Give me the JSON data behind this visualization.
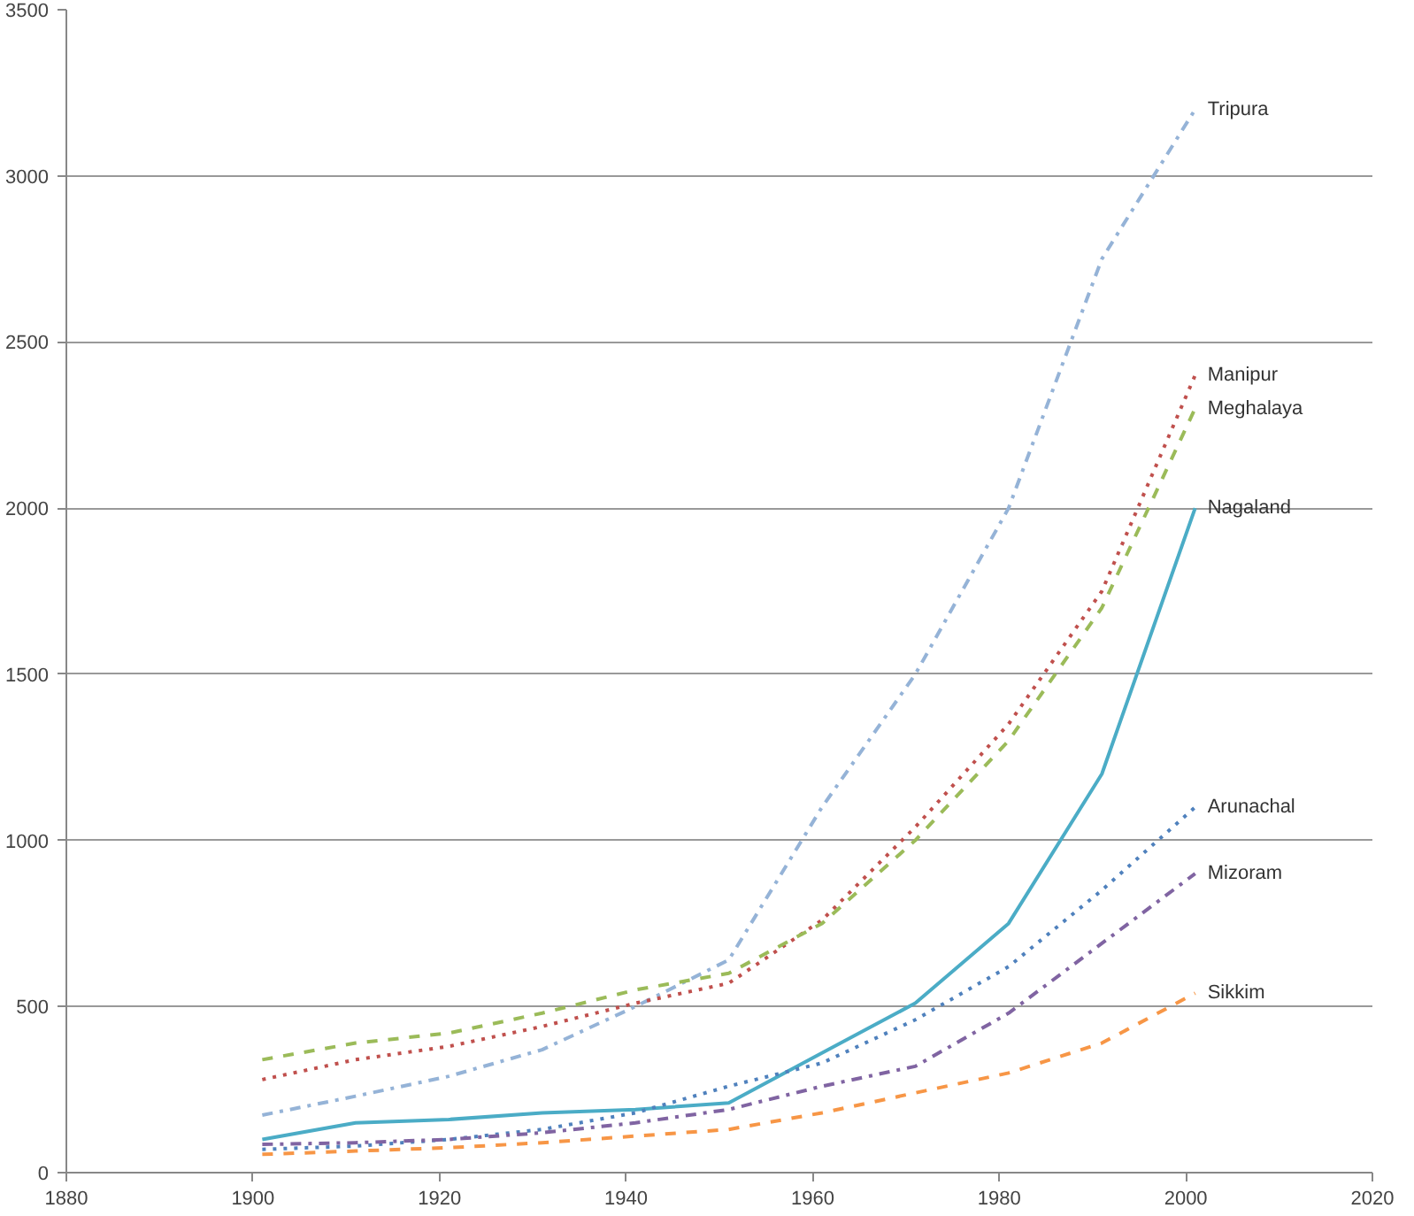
{
  "chart_data": {
    "type": "line",
    "x": [
      1901,
      1911,
      1921,
      1931,
      1941,
      1951,
      1961,
      1971,
      1981,
      1991,
      2001
    ],
    "xlim": [
      1880,
      2020
    ],
    "xticks": [
      1880,
      1900,
      1920,
      1940,
      1960,
      1980,
      2000,
      2020
    ],
    "ylim": [
      0,
      3500
    ],
    "yticks": [
      0,
      500,
      1000,
      1500,
      2000,
      2500,
      3000,
      3500
    ],
    "grid": "y",
    "legend": false,
    "marker": "none",
    "series": [
      {
        "name": "Tripura",
        "color": "#95b3d7",
        "line_style": "dashdot",
        "values": [
          173,
          230,
          290,
          370,
          500,
          640,
          1100,
          1500,
          2000,
          2750,
          3200
        ]
      },
      {
        "name": "Manipur",
        "color": "#c0504d",
        "line_style": "dotted",
        "values": [
          280,
          340,
          380,
          440,
          510,
          570,
          760,
          1040,
          1350,
          1750,
          2400
        ]
      },
      {
        "name": "Meghalaya",
        "color": "#9bbb59",
        "line_style": "dashed",
        "values": [
          340,
          390,
          420,
          480,
          550,
          600,
          750,
          1000,
          1300,
          1700,
          2300
        ]
      },
      {
        "name": "Nagaland",
        "color": "#4bacc6",
        "line_style": "solid",
        "values": [
          100,
          150,
          160,
          180,
          190,
          210,
          360,
          510,
          750,
          1200,
          2000
        ]
      },
      {
        "name": "Arunachal",
        "color": "#4f81bd",
        "line_style": "dotted",
        "values": [
          70,
          80,
          100,
          130,
          180,
          260,
          330,
          460,
          620,
          850,
          1100
        ]
      },
      {
        "name": "Mizoram",
        "color": "#8064a2",
        "line_style": "dashdot",
        "values": [
          85,
          90,
          100,
          120,
          150,
          190,
          260,
          320,
          480,
          690,
          900
        ]
      },
      {
        "name": "Sikkim",
        "color": "#f79646",
        "line_style": "dashed",
        "values": [
          55,
          65,
          75,
          90,
          110,
          130,
          180,
          240,
          300,
          390,
          540
        ]
      }
    ]
  }
}
